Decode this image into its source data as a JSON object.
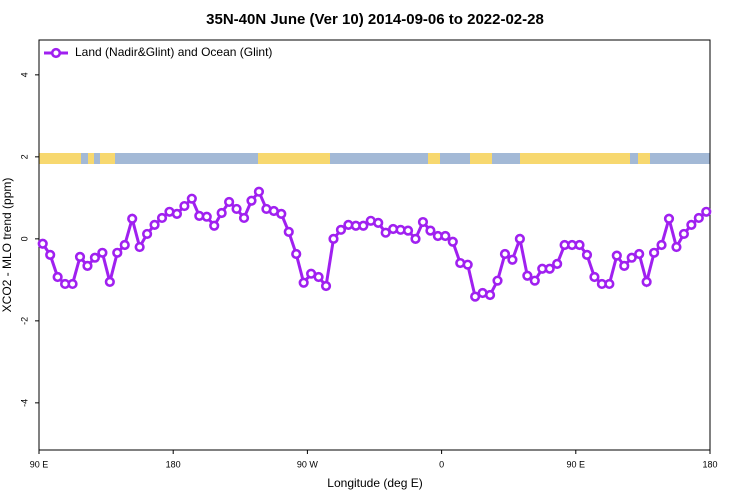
{
  "chart_data": {
    "type": "line",
    "title": "35N-40N June (Ver 10)   2014-09-06 to 2022-02-28",
    "xlabel": "Longitude (deg E)",
    "ylabel": "XCO2 - MLO trend (ppm)",
    "xlim": [
      90,
      540
    ],
    "ylim": [
      -5.15,
      4.85
    ],
    "xticks": [
      {
        "value": 90,
        "label": "90 E"
      },
      180,
      {
        "value": 270,
        "label": "90 W"
      },
      {
        "value": 360,
        "label": "0"
      },
      {
        "value": 450,
        "label": "90 E"
      },
      {
        "value": 540,
        "label": "180"
      }
    ],
    "yticks": [
      4,
      2,
      0,
      -2,
      -4
    ],
    "legend_position": "top-left",
    "x": [
      92.5,
      97.5,
      102.5,
      107.5,
      112.5,
      117.5,
      122.5,
      127.5,
      132.5,
      137.5,
      142.5,
      147.5,
      152.5,
      157.5,
      162.5,
      167.5,
      172.5,
      177.5,
      182.5,
      187.5,
      192.5,
      197.5,
      202.5,
      207.5,
      212.5,
      217.5,
      222.5,
      227.5,
      232.5,
      237.5,
      242.5,
      247.5,
      252.5,
      257.5,
      262.5,
      267.5,
      272.5,
      277.5,
      282.5,
      287.5,
      292.5,
      297.5,
      302.5,
      307.5,
      312.5,
      317.5,
      322.5,
      327.5,
      332.5,
      337.5,
      342.5,
      347.5,
      352.5,
      357.5,
      362.5,
      367.5,
      372.5,
      377.5,
      382.5,
      387.5,
      392.5,
      397.5,
      402.5,
      407.5,
      412.5,
      417.5,
      422.5,
      427.5,
      432.5,
      437.5,
      442.5,
      447.5,
      452.5,
      457.5,
      462.5,
      467.5,
      472.5,
      477.5,
      482.5,
      487.5,
      492.5,
      497.5,
      502.5,
      507.5,
      512.5,
      517.5,
      522.5,
      527.5,
      532.5,
      537.5
    ],
    "series": [
      {
        "name": "Land (Nadir&Glint) and Ocean (Glint)",
        "color": "#a020f0",
        "values": [
          -0.12,
          -0.39,
          -0.93,
          -1.1,
          -1.1,
          -0.44,
          -0.66,
          -0.46,
          -0.34,
          -1.05,
          -0.34,
          -0.15,
          0.49,
          -0.2,
          0.12,
          0.34,
          0.51,
          0.66,
          0.61,
          0.8,
          0.98,
          0.56,
          0.54,
          0.32,
          0.63,
          0.9,
          0.73,
          0.51,
          0.93,
          1.15,
          0.73,
          0.68,
          0.61,
          0.17,
          -0.37,
          -1.07,
          -0.85,
          -0.93,
          -1.15,
          0,
          0.22,
          0.34,
          0.32,
          0.32,
          0.44,
          0.39,
          0.15,
          0.24,
          0.22,
          0.2,
          0,
          0.41,
          0.2,
          0.07,
          0.07,
          -0.07,
          -0.59,
          -0.63,
          -1.41,
          -1.32,
          -1.37,
          -1.02,
          -0.37,
          -0.51,
          0,
          -0.9,
          -1.02,
          -0.73,
          -0.73,
          -0.61,
          -0.15,
          -0.15,
          -0.15,
          -0.39,
          -0.93,
          -1.1,
          -1.1,
          -0.41,
          -0.66,
          -0.46,
          -0.37,
          -1.05,
          -0.34,
          -0.15,
          0.49,
          -0.2,
          0.12,
          0.34,
          0.51,
          0.66
        ]
      }
    ]
  }
}
